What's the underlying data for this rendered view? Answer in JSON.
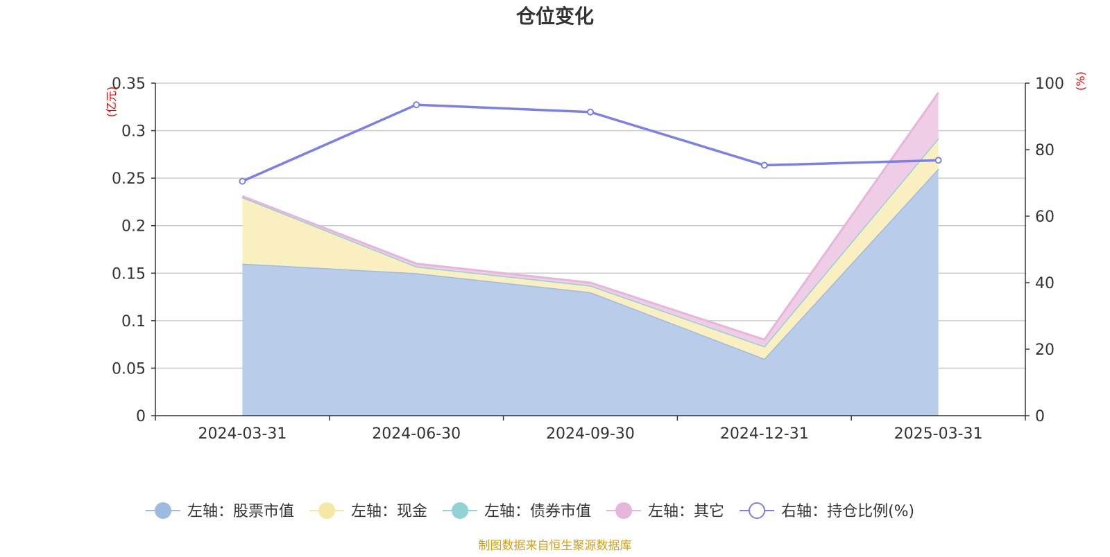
{
  "chart_data": {
    "type": "area",
    "title": "仓位变化",
    "categories": [
      "2024-03-31",
      "2024-06-30",
      "2024-09-30",
      "2024-12-31",
      "2025-03-31"
    ],
    "left_axis": {
      "unit": "(亿元)",
      "min": 0,
      "max": 0.35,
      "ticks": [
        0,
        0.05,
        0.1,
        0.15,
        0.2,
        0.25,
        0.3,
        0.35
      ],
      "tick_labels": [
        "0",
        "0.05",
        "0.1",
        "0.15",
        "0.2",
        "0.25",
        "0.3",
        "0.35"
      ]
    },
    "right_axis": {
      "unit": "(%)",
      "min": 0,
      "max": 100,
      "ticks": [
        0,
        20,
        40,
        60,
        80,
        100
      ]
    },
    "stacked_series": [
      {
        "name": "左轴：股票市值",
        "color": "#9dbbe1",
        "fill": "#b9cdea",
        "values": [
          0.16,
          0.15,
          0.13,
          0.06,
          0.26
        ]
      },
      {
        "name": "左轴：现金",
        "color": "#f7e7a6",
        "fill": "#faefc1",
        "values": [
          0.07,
          0.007,
          0.007,
          0.013,
          0.032
        ]
      },
      {
        "name": "左轴：债券市值",
        "color": "#93d2d4",
        "fill": "#b4e0e2",
        "values": [
          0,
          0,
          0,
          0,
          0
        ]
      },
      {
        "name": "左轴：其它",
        "color": "#e5b6da",
        "fill": "#efcde6",
        "values": [
          0.001,
          0.003,
          0.003,
          0.007,
          0.048
        ]
      }
    ],
    "line_series": {
      "name": "右轴：持仓比例(%)",
      "color": "#7b7fe8",
      "values": [
        70.5,
        93.5,
        91.3,
        75.3,
        76.8
      ]
    },
    "grid": true,
    "legend_position": "bottom"
  },
  "footer": {
    "source": "制图数据来自恒生聚源数据库"
  }
}
